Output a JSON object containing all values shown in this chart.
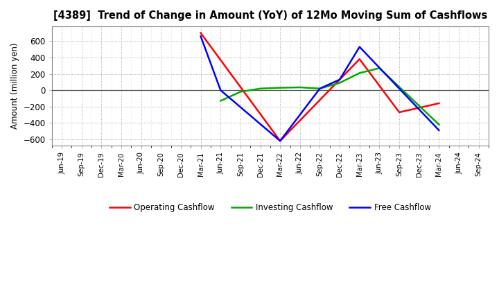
{
  "title": "[4389]  Trend of Change in Amount (YoY) of 12Mo Moving Sum of Cashflows",
  "ylabel": "Amount (million yen)",
  "background_color": "#ffffff",
  "plot_bg_color": "#ffffff",
  "grid_color": "#999999",
  "ylim": [
    -680,
    780
  ],
  "yticks": [
    -600,
    -400,
    -200,
    0,
    200,
    400,
    600
  ],
  "x_labels": [
    "Jun-19",
    "Sep-19",
    "Dec-19",
    "Mar-20",
    "Jun-20",
    "Sep-20",
    "Dec-20",
    "Mar-21",
    "Jun-21",
    "Sep-21",
    "Dec-21",
    "Mar-22",
    "Jun-22",
    "Sep-22",
    "Dec-22",
    "Mar-23",
    "Jun-23",
    "Sep-23",
    "Dec-23",
    "Mar-24",
    "Jun-24",
    "Sep-24"
  ],
  "operating_x": [
    7,
    11,
    15,
    17,
    19
  ],
  "operating_y": [
    700,
    -620,
    380,
    -270,
    -160
  ],
  "investing_x": [
    8,
    9,
    10,
    11,
    12,
    13,
    14,
    15,
    16,
    19
  ],
  "investing_y": [
    -130,
    -20,
    20,
    30,
    35,
    20,
    90,
    210,
    270,
    -420
  ],
  "free_x": [
    7,
    8,
    11,
    13,
    14,
    15,
    19
  ],
  "free_y": [
    660,
    0,
    -620,
    20,
    130,
    530,
    -490
  ],
  "operating_color": "#ff0000",
  "investing_color": "#00aa00",
  "free_color": "#0000ff",
  "linewidth": 1.8,
  "legend_labels": [
    "Operating Cashflow",
    "Investing Cashflow",
    "Free Cashflow"
  ]
}
